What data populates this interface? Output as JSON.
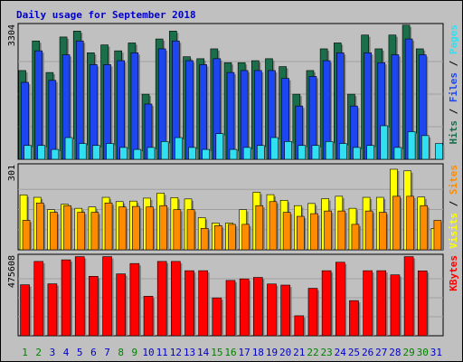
{
  "chart_data": {
    "type": "bar",
    "title": "Daily usage for September 2018",
    "days": [
      "1",
      "2",
      "3",
      "4",
      "5",
      "6",
      "7",
      "8",
      "9",
      "10",
      "11",
      "12",
      "13",
      "14",
      "15",
      "16",
      "17",
      "18",
      "19",
      "20",
      "21",
      "22",
      "23",
      "24",
      "25",
      "26",
      "27",
      "28",
      "29",
      "30",
      "31"
    ],
    "weekend_days": [
      1,
      2,
      8,
      9,
      15,
      16,
      22,
      23,
      29,
      30
    ],
    "colors": {
      "hits": "#1a6e4a",
      "files": "#1e46f0",
      "pages": "#30e0f0",
      "visits": "#ffff00",
      "sites": "#ff8c00",
      "kbytes": "#ff0000",
      "weekday_label": "#0000cc",
      "weekend_label": "#008000",
      "panel": "#c0c0c0",
      "grid": "#a0a0a0"
    },
    "panels": [
      {
        "id": "hits-files-pages",
        "ytick": "3304",
        "ymax": 3304,
        "legend": [
          {
            "label": "Hits",
            "color": "#1a6e4a"
          },
          {
            "label": "Files",
            "color": "#1e46f0"
          },
          {
            "label": "Pages",
            "color": "#30e0f0"
          }
        ],
        "series": [
          {
            "name": "Hits",
            "values": [
              2250,
              3000,
              2200,
              3100,
              3250,
              2700,
              2900,
              2750,
              2950,
              1650,
              3050,
              3250,
              2600,
              2550,
              2800,
              2450,
              2450,
              2500,
              2550,
              2350,
              1650,
              2250,
              2800,
              2950,
              1650,
              3150,
              2800,
              3150,
              3400,
              2800,
              0
            ]
          },
          {
            "name": "Files",
            "values": [
              1950,
              2750,
              2000,
              2650,
              3000,
              2400,
              2400,
              2500,
              2700,
              1400,
              2800,
              3000,
              2500,
              2400,
              2550,
              2200,
              2250,
              2250,
              2250,
              2050,
              1350,
              2100,
              2500,
              2700,
              1350,
              2700,
              2450,
              2650,
              3050,
              2650,
              0
            ]
          },
          {
            "name": "Pages",
            "values": [
              350,
              350,
              250,
              550,
              400,
              350,
              400,
              300,
              250,
              300,
              450,
              550,
              300,
              250,
              650,
              250,
              300,
              350,
              550,
              450,
              350,
              350,
              450,
              400,
              300,
              350,
              850,
              300,
              700,
              600,
              400
            ]
          }
        ]
      },
      {
        "id": "visits-sites",
        "ytick": "301",
        "ymax": 301,
        "legend": [
          {
            "label": "Visits",
            "color": "#ffff00"
          },
          {
            "label": "Sites",
            "color": "#ff8c00"
          }
        ],
        "series": [
          {
            "name": "Visits",
            "values": [
              205,
              196,
              150,
              170,
              155,
              160,
              196,
              180,
              182,
              193,
              212,
              195,
              190,
              120,
              100,
              100,
              150,
              215,
              206,
              185,
              165,
              173,
              191,
              200,
              155,
              196,
              196,
              301,
              295,
              197,
              80
            ]
          },
          {
            "name": "Sites",
            "values": [
              110,
              175,
              140,
              165,
              140,
              140,
              175,
              160,
              162,
              160,
              165,
              150,
              150,
              80,
              90,
              95,
              95,
              165,
              180,
              140,
              125,
              135,
              145,
              145,
              95,
              145,
              140,
              200,
              200,
              165,
              110
            ]
          }
        ]
      },
      {
        "id": "kbytes",
        "ytick": "475608",
        "ymax": 475608,
        "legend": [
          {
            "label": "KBytes",
            "color": "#ff0000"
          }
        ],
        "series": [
          {
            "name": "KBytes",
            "values": [
              319000,
              465000,
              325000,
              475000,
              495000,
              372000,
              495000,
              387000,
              452000,
              247000,
              465000,
              465000,
              407000,
              407000,
              237000,
              346000,
              356000,
              365000,
              324000,
              317000,
              125000,
              297000,
              407000,
              460000,
              220000,
              407000,
              407000,
              381000,
              495000,
              406000,
              0
            ]
          }
        ]
      }
    ]
  }
}
